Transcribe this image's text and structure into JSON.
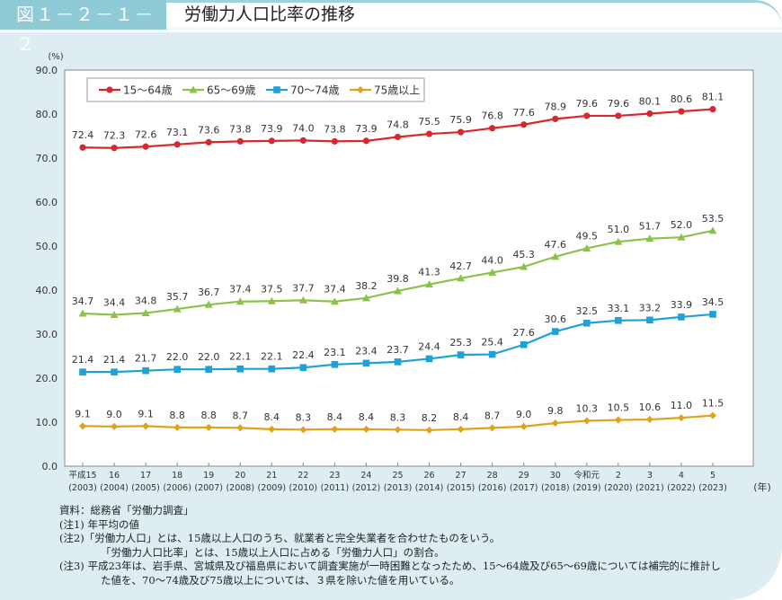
{
  "header": {
    "figure_number": "図１－２－１－２",
    "title": "労働力人口比率の推移"
  },
  "chart_data": {
    "type": "line",
    "ylabel": "(%)",
    "xlabel": "(年)",
    "ylim": [
      0,
      90
    ],
    "yticks": [
      "0.0",
      "10.0",
      "20.0",
      "30.0",
      "40.0",
      "50.0",
      "60.0",
      "70.0",
      "80.0",
      "90.0"
    ],
    "grid": false,
    "legend_position": "top-left",
    "categories": [
      {
        "era": "平成15",
        "year": "(2003)"
      },
      {
        "era": "16",
        "year": "(2004)"
      },
      {
        "era": "17",
        "year": "(2005)"
      },
      {
        "era": "18",
        "year": "(2006)"
      },
      {
        "era": "19",
        "year": "(2007)"
      },
      {
        "era": "20",
        "year": "(2008)"
      },
      {
        "era": "21",
        "year": "(2009)"
      },
      {
        "era": "22",
        "year": "(2010)"
      },
      {
        "era": "23",
        "year": "(2011)"
      },
      {
        "era": "24",
        "year": "(2012)"
      },
      {
        "era": "25",
        "year": "(2013)"
      },
      {
        "era": "26",
        "year": "(2014)"
      },
      {
        "era": "27",
        "year": "(2015)"
      },
      {
        "era": "28",
        "year": "(2016)"
      },
      {
        "era": "29",
        "year": "(2017)"
      },
      {
        "era": "30",
        "year": "(2018)"
      },
      {
        "era": "令和元",
        "year": "(2019)"
      },
      {
        "era": "2",
        "year": "(2020)"
      },
      {
        "era": "3",
        "year": "(2021)"
      },
      {
        "era": "4",
        "year": "(2022)"
      },
      {
        "era": "5",
        "year": "(2023)"
      }
    ],
    "series": [
      {
        "name": "15～64歳",
        "color": "#d7282f",
        "marker": "circle",
        "values": [
          72.4,
          72.3,
          72.6,
          73.1,
          73.6,
          73.8,
          73.9,
          74.0,
          73.8,
          73.9,
          74.8,
          75.5,
          75.9,
          76.8,
          77.6,
          78.9,
          79.6,
          79.6,
          80.1,
          80.6,
          81.1
        ]
      },
      {
        "name": "65～69歳",
        "color": "#8bc34a",
        "marker": "triangle",
        "values": [
          34.7,
          34.4,
          34.8,
          35.7,
          36.7,
          37.4,
          37.5,
          37.7,
          37.4,
          38.2,
          39.8,
          41.3,
          42.7,
          44.0,
          45.3,
          47.6,
          49.5,
          51.0,
          51.7,
          52.0,
          53.5
        ]
      },
      {
        "name": "70～74歳",
        "color": "#1ea0d8",
        "marker": "square",
        "values": [
          21.4,
          21.4,
          21.7,
          22.0,
          22.0,
          22.1,
          22.1,
          22.4,
          23.1,
          23.4,
          23.7,
          24.4,
          25.3,
          25.4,
          27.6,
          30.6,
          32.5,
          33.1,
          33.2,
          33.9,
          34.5
        ]
      },
      {
        "name": "75歳以上",
        "color": "#e0a11b",
        "marker": "diamond",
        "values": [
          9.1,
          9.0,
          9.1,
          8.8,
          8.8,
          8.7,
          8.4,
          8.3,
          8.4,
          8.4,
          8.3,
          8.2,
          8.4,
          8.7,
          9.0,
          9.8,
          10.3,
          10.5,
          10.6,
          11.0,
          11.5
        ]
      }
    ]
  },
  "notes": {
    "source": "資料：総務省「労働力調査」",
    "note1": "(注1) 年平均の値",
    "note2a": "(注2)「労働力人口」とは、15歳以上人口のうち、就業者と完全失業者を合わせたものをいう。",
    "note2b": "「労働力人口比率」とは、15歳以上人口に占める「労働力人口」の割合。",
    "note3a": "(注3) 平成23年は、岩手県、宮城県及び福島県において調査実施が一時困難となったため、15～64歳及び65～69歳については補完的に推計し",
    "note3b": "た値を、70～74歳及び75歳以上については、３県を除いた値を用いている。"
  }
}
